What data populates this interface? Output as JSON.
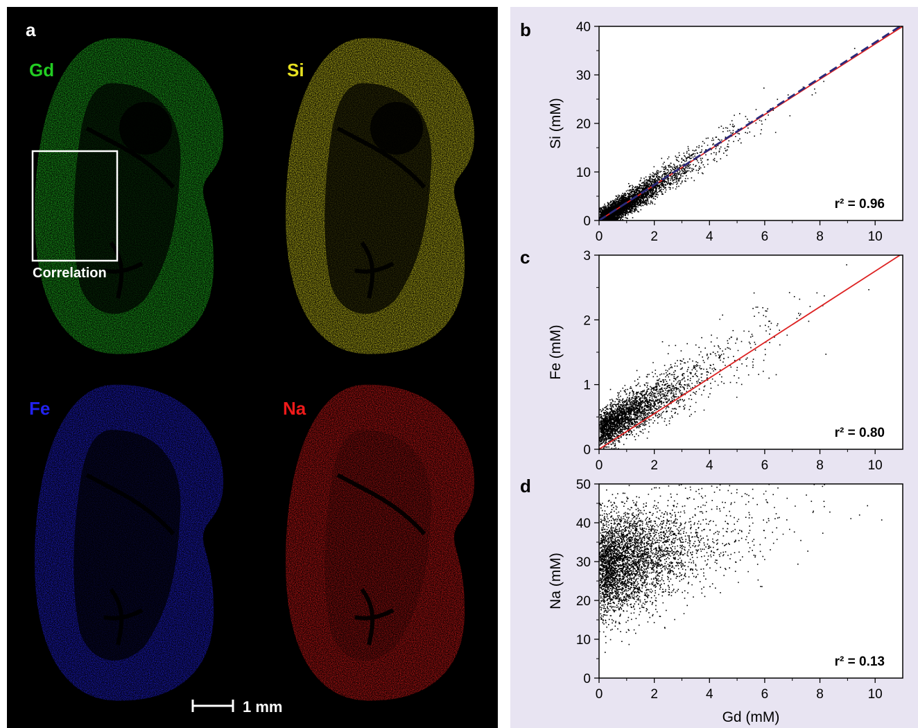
{
  "panel_a": {
    "letter": "a",
    "maps": [
      {
        "element": "Gd",
        "color": "#22cc22"
      },
      {
        "element": "Si",
        "color": "#e6e020"
      },
      {
        "element": "Fe",
        "color": "#2222ee"
      },
      {
        "element": "Na",
        "color": "#ee1a1a"
      }
    ],
    "roi_label": "Correlation",
    "scale_bar_label": "1 mm"
  },
  "chart_data": [
    {
      "type": "scatter",
      "panel": "b",
      "xlabel": "",
      "ylabel": "Si (mM)",
      "xlim": [
        0,
        11
      ],
      "ylim": [
        0,
        40
      ],
      "xticks": [
        0,
        2,
        4,
        6,
        8,
        10
      ],
      "yticks": [
        0,
        10,
        20,
        30,
        40
      ],
      "annotation": "r² = 0.96",
      "fit_lines": [
        {
          "style": "solid",
          "color": "#dd2222",
          "x": [
            0,
            11
          ],
          "y": [
            0,
            40
          ]
        },
        {
          "style": "dashed",
          "color": "#2a2a7a",
          "x": [
            0,
            10.9
          ],
          "y": [
            0,
            40
          ]
        }
      ],
      "cloud": {
        "slope": 3.64,
        "x_mode": 0.7,
        "x_max": 10.9,
        "y_spread": 1.6
      }
    },
    {
      "type": "scatter",
      "panel": "c",
      "xlabel": "",
      "ylabel": "Fe (mM)",
      "xlim": [
        0,
        11
      ],
      "ylim": [
        0,
        3
      ],
      "xticks": [
        0,
        2,
        4,
        6,
        8,
        10
      ],
      "yticks": [
        0,
        1,
        2,
        3
      ],
      "annotation": "r² = 0.80",
      "fit_lines": [
        {
          "style": "solid",
          "color": "#dd2222",
          "x": [
            0,
            10.9
          ],
          "y": [
            0,
            3
          ]
        }
      ],
      "cloud": {
        "slope": 0.24,
        "intercept": 0.3,
        "x_mode": 0.9,
        "x_max": 10.7,
        "y_spread": 0.22
      }
    },
    {
      "type": "scatter",
      "panel": "d",
      "xlabel": "Gd (mM)",
      "ylabel": "Na (mM)",
      "xlim": [
        0,
        11
      ],
      "ylim": [
        0,
        50
      ],
      "xticks": [
        0,
        2,
        4,
        6,
        8,
        10
      ],
      "yticks": [
        0,
        10,
        20,
        30,
        40,
        50
      ],
      "annotation": "r² = 0.13",
      "fit_lines": [],
      "cloud": {
        "slope": 1.8,
        "intercept": 24,
        "x_mode": 0.9,
        "x_max": 10.8,
        "y_spread": 6.5
      }
    }
  ]
}
